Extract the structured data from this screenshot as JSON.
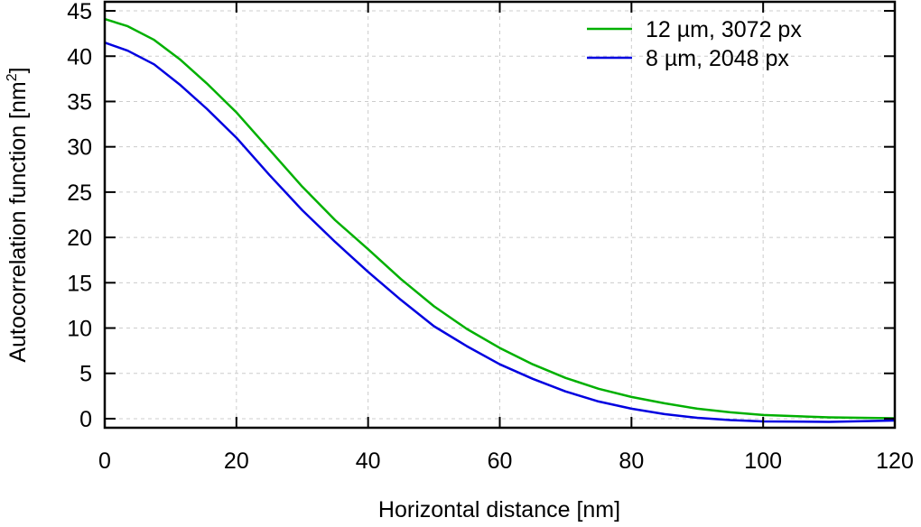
{
  "chart_data": {
    "type": "line",
    "title": "",
    "xlabel": "Horizontal distance [nm]",
    "ylabel": "Autocorrelation function [nm",
    "ylabel_superscript": "2",
    "ylabel_close": "]",
    "xlim": [
      0,
      120
    ],
    "ylim": [
      -1,
      46
    ],
    "xticks": [
      0,
      20,
      40,
      60,
      80,
      100,
      120
    ],
    "yticks": [
      0,
      5,
      10,
      15,
      20,
      25,
      30,
      35,
      40,
      45
    ],
    "grid": true,
    "legend_position": "top-right",
    "series": [
      {
        "name": "12 µm, 3072 px",
        "color": "#00b000",
        "x": [
          0,
          3.5,
          7.5,
          11.5,
          15.5,
          20,
          25,
          30,
          35,
          40,
          45,
          50,
          55,
          60,
          65,
          70,
          75,
          80,
          85,
          90,
          95,
          100,
          110,
          120
        ],
        "y": [
          44.1,
          43.3,
          41.8,
          39.6,
          37.0,
          33.8,
          29.7,
          25.6,
          21.9,
          18.7,
          15.4,
          12.4,
          9.9,
          7.8,
          6.0,
          4.5,
          3.3,
          2.4,
          1.7,
          1.1,
          0.7,
          0.4,
          0.15,
          0.05
        ]
      },
      {
        "name": "8 µm, 2048 px",
        "color": "#0000e0",
        "x": [
          0,
          3.5,
          7.5,
          11.5,
          15.5,
          20,
          25,
          30,
          35,
          40,
          45,
          50,
          55,
          60,
          65,
          70,
          75,
          80,
          85,
          90,
          95,
          100,
          110,
          120
        ],
        "y": [
          41.5,
          40.6,
          39.1,
          36.8,
          34.2,
          31.0,
          26.9,
          23.0,
          19.5,
          16.2,
          13.1,
          10.2,
          8.0,
          6.0,
          4.4,
          3.0,
          1.9,
          1.1,
          0.5,
          0.1,
          -0.15,
          -0.3,
          -0.35,
          -0.2
        ]
      }
    ]
  }
}
